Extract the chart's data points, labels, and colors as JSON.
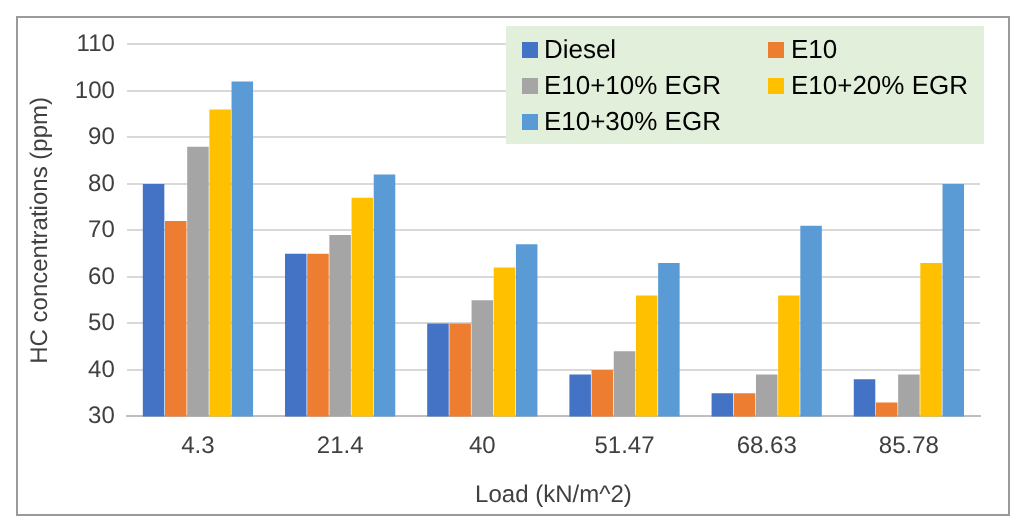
{
  "chart_data": {
    "type": "bar",
    "xlabel": "Load (kN/m^2)",
    "ylabel": "HC concentrations (ppm)",
    "categories": [
      "4.3",
      "21.4",
      "40",
      "51.47",
      "68.63",
      "85.78"
    ],
    "series": [
      {
        "name": "Diesel",
        "color": "#4472c4",
        "values": [
          80,
          65,
          50,
          39,
          35,
          38
        ]
      },
      {
        "name": "E10",
        "color": "#ed7d31",
        "values": [
          72,
          65,
          50,
          40,
          35,
          33
        ]
      },
      {
        "name": "E10+10% EGR",
        "color": "#a5a5a5",
        "values": [
          88,
          69,
          55,
          44,
          39,
          39
        ]
      },
      {
        "name": "E10+20% EGR",
        "color": "#ffc000",
        "values": [
          96,
          77,
          62,
          56,
          56,
          63
        ]
      },
      {
        "name": "E10+30% EGR",
        "color": "#5b9bd5",
        "values": [
          102,
          82,
          67,
          63,
          71,
          80
        ]
      }
    ],
    "ylim": [
      30,
      110
    ],
    "yticks": [
      30,
      40,
      50,
      60,
      70,
      80,
      90,
      100,
      110
    ],
    "grid": "y",
    "legend": "top right"
  }
}
